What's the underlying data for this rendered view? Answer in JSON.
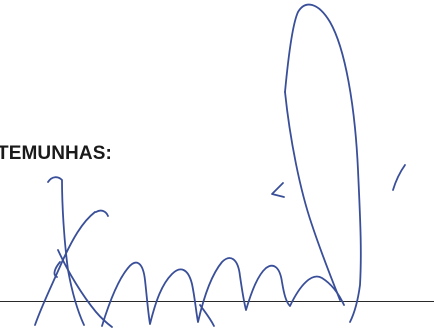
{
  "document": {
    "witness_heading": "TEMUNHAS:"
  },
  "signature": {
    "ink_color": "#3a4f99",
    "line_color": "#2a2a2a"
  }
}
